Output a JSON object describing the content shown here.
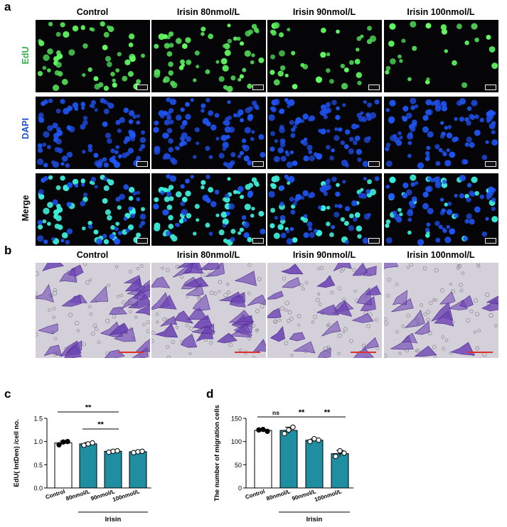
{
  "panel_a": {
    "letter": "a",
    "columns": [
      "Control",
      "Irisin 80nmol/L",
      "Irisin 90nmol/L",
      "Irisin 100nmol/L"
    ],
    "rows": [
      {
        "label": "EdU",
        "color": "#2bb34a"
      },
      {
        "label": "DAPI",
        "color": "#1f4fd6"
      },
      {
        "label": "Merge",
        "color": "#000000"
      }
    ]
  },
  "panel_b": {
    "letter": "b",
    "columns": [
      "Control",
      "Irisin 80nmol/L",
      "Irisin 90nmol/L",
      "Irisin 100nmol/L"
    ],
    "stain_color": "#7a4fb8",
    "background_color": "#d6d3db"
  },
  "panel_c": {
    "letter": "c",
    "group_label": "Irisin"
  },
  "panel_d": {
    "letter": "d",
    "group_label": "Irisin"
  },
  "chart_data": [
    {
      "type": "bar",
      "panel": "c",
      "categories": [
        "Control",
        "80nmol/L",
        "90nmol/L",
        "100nmol/L"
      ],
      "values": [
        0.97,
        0.95,
        0.79,
        0.78
      ],
      "errors": [
        0.04,
        0.03,
        0.02,
        0.02
      ],
      "points": [
        [
          0.93,
          0.99,
          1.0
        ],
        [
          0.92,
          0.95,
          0.97
        ],
        [
          0.77,
          0.79,
          0.8
        ],
        [
          0.76,
          0.78,
          0.79
        ]
      ],
      "bar_colors": [
        "#ffffff",
        "#1f8ea0",
        "#1f8ea0",
        "#1f8ea0"
      ],
      "ylabel": "EdU( IntDen) /cell no.",
      "xlabel": "",
      "ylim": [
        0,
        1.5
      ],
      "yticks": [
        0.0,
        0.5,
        1.0,
        1.5
      ],
      "ytick_labels": [
        "0.0",
        "0.5",
        "1.0",
        "1.5"
      ],
      "significance": [
        {
          "from": 0,
          "to": 2,
          "label": "**"
        },
        {
          "from": 1,
          "to": 2,
          "label": "**"
        }
      ],
      "group_label": "Irisin"
    },
    {
      "type": "bar",
      "panel": "d",
      "categories": [
        "Control",
        "80nmol/L",
        "90nmol/L",
        "100nmol/L"
      ],
      "values": [
        124,
        124,
        103,
        74
      ],
      "errors": [
        2,
        7,
        3,
        7
      ],
      "points": [
        [
          125,
          126,
          122
        ],
        [
          117,
          125,
          131
        ],
        [
          100,
          106,
          103
        ],
        [
          68,
          80,
          75
        ]
      ],
      "bar_colors": [
        "#ffffff",
        "#1f8ea0",
        "#1f8ea0",
        "#1f8ea0"
      ],
      "ylabel": "The number of migration cells",
      "xlabel": "",
      "ylim": [
        0,
        150
      ],
      "yticks": [
        0,
        50,
        100,
        150
      ],
      "ytick_labels": [
        "0",
        "50",
        "100",
        "150"
      ],
      "significance": [
        {
          "from": 0,
          "to": 1,
          "label": "ns"
        },
        {
          "from": 1,
          "to": 2,
          "label": "**"
        },
        {
          "from": 2,
          "to": 3,
          "label": "**"
        }
      ],
      "group_label": "Irisin"
    }
  ]
}
